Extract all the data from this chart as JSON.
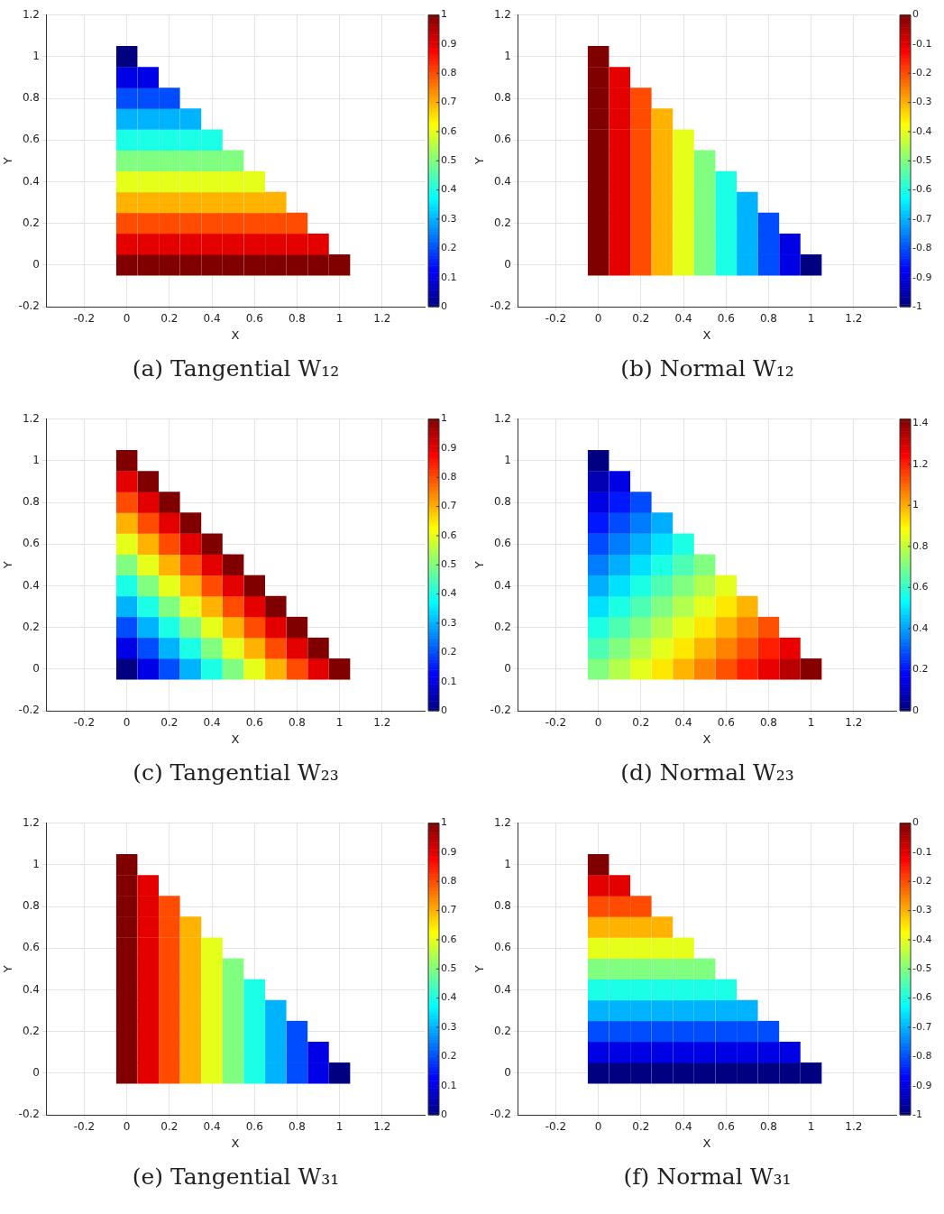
{
  "chart_data": [
    {
      "type": "scatter",
      "title": "(a) Tangential W₁₂",
      "xlabel": "X",
      "ylabel": "Y",
      "marker": "square",
      "grid": true,
      "xlim": [
        -0.38,
        1.4
      ],
      "ylim": [
        -0.2,
        1.2
      ],
      "xticks": [
        -0.2,
        0,
        0.2,
        0.4,
        0.6,
        0.8,
        1,
        1.2
      ],
      "yticks": [
        -0.2,
        0,
        0.2,
        0.4,
        0.6,
        0.8,
        1,
        1.2
      ],
      "clim": [
        0,
        1
      ],
      "cticks": [
        0,
        0.1,
        0.2,
        0.3,
        0.4,
        0.5,
        0.6,
        0.7,
        0.8,
        0.9,
        1
      ],
      "x": [
        0,
        0,
        0,
        0,
        0,
        0,
        0,
        0,
        0,
        0,
        0,
        0.1,
        0.1,
        0.1,
        0.1,
        0.1,
        0.1,
        0.1,
        0.1,
        0.1,
        0.1,
        0.2,
        0.2,
        0.2,
        0.2,
        0.2,
        0.2,
        0.2,
        0.2,
        0.2,
        0.3,
        0.3,
        0.3,
        0.3,
        0.3,
        0.3,
        0.3,
        0.3,
        0.4,
        0.4,
        0.4,
        0.4,
        0.4,
        0.4,
        0.4,
        0.5,
        0.5,
        0.5,
        0.5,
        0.5,
        0.5,
        0.6,
        0.6,
        0.6,
        0.6,
        0.6,
        0.7,
        0.7,
        0.7,
        0.7,
        0.8,
        0.8,
        0.8,
        0.9,
        0.9,
        1
      ],
      "values": [
        0,
        0.1,
        0.2,
        0.3,
        0.4,
        0.5,
        0.6,
        0.7,
        0.8,
        0.9,
        1,
        0,
        0.1,
        0.2,
        0.3,
        0.4,
        0.5,
        0.6,
        0.7,
        0.8,
        0.9,
        0,
        0.1,
        0.2,
        0.3,
        0.4,
        0.5,
        0.6,
        0.7,
        0.8,
        0,
        0.1,
        0.2,
        0.3,
        0.4,
        0.5,
        0.6,
        0.7,
        0,
        0.1,
        0.2,
        0.3,
        0.4,
        0.5,
        0.6,
        0,
        0.1,
        0.2,
        0.3,
        0.4,
        0.5,
        0,
        0.1,
        0.2,
        0.3,
        0.4,
        0,
        0.1,
        0.2,
        0.3,
        0,
        0.1,
        0.2,
        0,
        0.1,
        0
      ],
      "cvalues": [
        1,
        0.9,
        0.8,
        0.7,
        0.6,
        0.5,
        0.4,
        0.3,
        0.2,
        0.1,
        0,
        1,
        0.9,
        0.8,
        0.7,
        0.6,
        0.5,
        0.4,
        0.3,
        0.2,
        0.1,
        1,
        0.9,
        0.8,
        0.7,
        0.6,
        0.5,
        0.4,
        0.3,
        0.2,
        1,
        0.9,
        0.8,
        0.7,
        0.6,
        0.5,
        0.4,
        0.3,
        1,
        0.9,
        0.8,
        0.7,
        0.6,
        0.5,
        0.4,
        1,
        0.9,
        0.8,
        0.7,
        0.6,
        0.5,
        1,
        0.9,
        0.8,
        0.7,
        0.6,
        1,
        0.9,
        0.8,
        0.7,
        1,
        0.9,
        0.8,
        1,
        0.9,
        1
      ]
    },
    {
      "type": "scatter",
      "title": "(b) Normal W₁₂",
      "xlabel": "X",
      "ylabel": "Y",
      "marker": "square",
      "grid": true,
      "xlim": [
        -0.38,
        1.4
      ],
      "ylim": [
        -0.2,
        1.2
      ],
      "xticks": [
        -0.2,
        0,
        0.2,
        0.4,
        0.6,
        0.8,
        1,
        1.2
      ],
      "yticks": [
        -0.2,
        0,
        0.2,
        0.4,
        0.6,
        0.8,
        1,
        1.2
      ],
      "clim": [
        -1,
        0
      ],
      "cticks": [
        -1,
        -0.9,
        -0.8,
        -0.7,
        -0.6,
        -0.5,
        -0.4,
        -0.3,
        -0.2,
        -0.1,
        0
      ],
      "x": [
        0,
        0,
        0,
        0,
        0,
        0,
        0,
        0,
        0,
        0,
        0,
        0.1,
        0.1,
        0.1,
        0.1,
        0.1,
        0.1,
        0.1,
        0.1,
        0.1,
        0.1,
        0.2,
        0.2,
        0.2,
        0.2,
        0.2,
        0.2,
        0.2,
        0.2,
        0.2,
        0.3,
        0.3,
        0.3,
        0.3,
        0.3,
        0.3,
        0.3,
        0.3,
        0.4,
        0.4,
        0.4,
        0.4,
        0.4,
        0.4,
        0.4,
        0.5,
        0.5,
        0.5,
        0.5,
        0.5,
        0.5,
        0.6,
        0.6,
        0.6,
        0.6,
        0.6,
        0.7,
        0.7,
        0.7,
        0.7,
        0.8,
        0.8,
        0.8,
        0.9,
        0.9,
        1
      ],
      "values": [
        0,
        0.1,
        0.2,
        0.3,
        0.4,
        0.5,
        0.6,
        0.7,
        0.8,
        0.9,
        1,
        0,
        0.1,
        0.2,
        0.3,
        0.4,
        0.5,
        0.6,
        0.7,
        0.8,
        0.9,
        0,
        0.1,
        0.2,
        0.3,
        0.4,
        0.5,
        0.6,
        0.7,
        0.8,
        0,
        0.1,
        0.2,
        0.3,
        0.4,
        0.5,
        0.6,
        0.7,
        0,
        0.1,
        0.2,
        0.3,
        0.4,
        0.5,
        0.6,
        0,
        0.1,
        0.2,
        0.3,
        0.4,
        0.5,
        0,
        0.1,
        0.2,
        0.3,
        0.4,
        0,
        0.1,
        0.2,
        0.3,
        0,
        0.1,
        0.2,
        0,
        0.1,
        0
      ],
      "cvalues": [
        0,
        0,
        0,
        0,
        0,
        0,
        0,
        0,
        0,
        0,
        0,
        -0.1,
        -0.1,
        -0.1,
        -0.1,
        -0.1,
        -0.1,
        -0.1,
        -0.1,
        -0.1,
        -0.1,
        -0.2,
        -0.2,
        -0.2,
        -0.2,
        -0.2,
        -0.2,
        -0.2,
        -0.2,
        -0.2,
        -0.3,
        -0.3,
        -0.3,
        -0.3,
        -0.3,
        -0.3,
        -0.3,
        -0.3,
        -0.4,
        -0.4,
        -0.4,
        -0.4,
        -0.4,
        -0.4,
        -0.4,
        -0.5,
        -0.5,
        -0.5,
        -0.5,
        -0.5,
        -0.5,
        -0.6,
        -0.6,
        -0.6,
        -0.6,
        -0.6,
        -0.7,
        -0.7,
        -0.7,
        -0.7,
        -0.8,
        -0.8,
        -0.8,
        -0.9,
        -0.9,
        -1
      ]
    },
    {
      "type": "scatter",
      "title": "(c) Tangential W₂₃",
      "xlabel": "X",
      "ylabel": "Y",
      "marker": "square",
      "grid": true,
      "xlim": [
        -0.38,
        1.4
      ],
      "ylim": [
        -0.2,
        1.2
      ],
      "xticks": [
        -0.2,
        0,
        0.2,
        0.4,
        0.6,
        0.8,
        1,
        1.2
      ],
      "yticks": [
        -0.2,
        0,
        0.2,
        0.4,
        0.6,
        0.8,
        1,
        1.2
      ],
      "clim": [
        0,
        1
      ],
      "cticks": [
        0,
        0.1,
        0.2,
        0.3,
        0.4,
        0.5,
        0.6,
        0.7,
        0.8,
        0.9,
        1
      ],
      "x": [
        0,
        0,
        0,
        0,
        0,
        0,
        0,
        0,
        0,
        0,
        0,
        0.1,
        0.1,
        0.1,
        0.1,
        0.1,
        0.1,
        0.1,
        0.1,
        0.1,
        0.1,
        0.2,
        0.2,
        0.2,
        0.2,
        0.2,
        0.2,
        0.2,
        0.2,
        0.2,
        0.3,
        0.3,
        0.3,
        0.3,
        0.3,
        0.3,
        0.3,
        0.3,
        0.4,
        0.4,
        0.4,
        0.4,
        0.4,
        0.4,
        0.4,
        0.5,
        0.5,
        0.5,
        0.5,
        0.5,
        0.5,
        0.6,
        0.6,
        0.6,
        0.6,
        0.6,
        0.7,
        0.7,
        0.7,
        0.7,
        0.8,
        0.8,
        0.8,
        0.9,
        0.9,
        1
      ],
      "values": [
        0,
        0.1,
        0.2,
        0.3,
        0.4,
        0.5,
        0.6,
        0.7,
        0.8,
        0.9,
        1,
        0,
        0.1,
        0.2,
        0.3,
        0.4,
        0.5,
        0.6,
        0.7,
        0.8,
        0.9,
        0,
        0.1,
        0.2,
        0.3,
        0.4,
        0.5,
        0.6,
        0.7,
        0.8,
        0,
        0.1,
        0.2,
        0.3,
        0.4,
        0.5,
        0.6,
        0.7,
        0,
        0.1,
        0.2,
        0.3,
        0.4,
        0.5,
        0.6,
        0,
        0.1,
        0.2,
        0.3,
        0.4,
        0.5,
        0,
        0.1,
        0.2,
        0.3,
        0.4,
        0,
        0.1,
        0.2,
        0.3,
        0,
        0.1,
        0.2,
        0,
        0.1,
        0
      ],
      "cvalues": [
        0,
        0.1,
        0.2,
        0.3,
        0.4,
        0.5,
        0.6,
        0.7,
        0.8,
        0.9,
        1,
        0.1,
        0.2,
        0.3,
        0.4,
        0.5,
        0.6,
        0.7,
        0.8,
        0.9,
        1,
        0.2,
        0.3,
        0.4,
        0.5,
        0.6,
        0.7,
        0.8,
        0.9,
        1,
        0.3,
        0.4,
        0.5,
        0.6,
        0.7,
        0.8,
        0.9,
        1,
        0.4,
        0.5,
        0.6,
        0.7,
        0.8,
        0.9,
        1,
        0.5,
        0.6,
        0.7,
        0.8,
        0.9,
        1,
        0.6,
        0.7,
        0.8,
        0.9,
        1,
        0.7,
        0.8,
        0.9,
        1,
        0.8,
        0.9,
        1,
        0.9,
        1,
        1
      ]
    },
    {
      "type": "scatter",
      "title": "(d) Normal W₂₃",
      "xlabel": "X",
      "ylabel": "Y",
      "marker": "square",
      "grid": true,
      "xlim": [
        -0.38,
        1.4
      ],
      "ylim": [
        -0.2,
        1.2
      ],
      "xticks": [
        -0.2,
        0,
        0.2,
        0.4,
        0.6,
        0.8,
        1,
        1.2
      ],
      "yticks": [
        -0.2,
        0,
        0.2,
        0.4,
        0.6,
        0.8,
        1,
        1.2
      ],
      "clim": [
        0,
        1.42
      ],
      "cticks": [
        0,
        0.2,
        0.4,
        0.6,
        0.8,
        1,
        1.2,
        1.4
      ],
      "x": [
        0,
        0,
        0,
        0,
        0,
        0,
        0,
        0,
        0,
        0,
        0,
        0.1,
        0.1,
        0.1,
        0.1,
        0.1,
        0.1,
        0.1,
        0.1,
        0.1,
        0.1,
        0.2,
        0.2,
        0.2,
        0.2,
        0.2,
        0.2,
        0.2,
        0.2,
        0.2,
        0.3,
        0.3,
        0.3,
        0.3,
        0.3,
        0.3,
        0.3,
        0.3,
        0.4,
        0.4,
        0.4,
        0.4,
        0.4,
        0.4,
        0.4,
        0.5,
        0.5,
        0.5,
        0.5,
        0.5,
        0.5,
        0.6,
        0.6,
        0.6,
        0.6,
        0.6,
        0.7,
        0.7,
        0.7,
        0.7,
        0.8,
        0.8,
        0.8,
        0.9,
        0.9,
        1
      ],
      "values": [
        0,
        0.1,
        0.2,
        0.3,
        0.4,
        0.5,
        0.6,
        0.7,
        0.8,
        0.9,
        1,
        0,
        0.1,
        0.2,
        0.3,
        0.4,
        0.5,
        0.6,
        0.7,
        0.8,
        0.9,
        0,
        0.1,
        0.2,
        0.3,
        0.4,
        0.5,
        0.6,
        0.7,
        0.8,
        0,
        0.1,
        0.2,
        0.3,
        0.4,
        0.5,
        0.6,
        0.7,
        0,
        0.1,
        0.2,
        0.3,
        0.4,
        0.5,
        0.6,
        0,
        0.1,
        0.2,
        0.3,
        0.4,
        0.5,
        0,
        0.1,
        0.2,
        0.3,
        0.4,
        0,
        0.1,
        0.2,
        0.3,
        0,
        0.1,
        0.2,
        0,
        0.1,
        0
      ],
      "cvalues": [
        0.71,
        0.64,
        0.57,
        0.49,
        0.42,
        0.35,
        0.28,
        0.21,
        0.14,
        0.07,
        0,
        0.78,
        0.71,
        0.64,
        0.57,
        0.49,
        0.42,
        0.35,
        0.28,
        0.21,
        0.14,
        0.85,
        0.78,
        0.71,
        0.64,
        0.57,
        0.49,
        0.42,
        0.35,
        0.28,
        0.92,
        0.85,
        0.78,
        0.71,
        0.64,
        0.57,
        0.49,
        0.42,
        0.99,
        0.92,
        0.85,
        0.78,
        0.71,
        0.64,
        0.57,
        1.06,
        0.99,
        0.92,
        0.85,
        0.78,
        0.71,
        1.13,
        1.06,
        0.99,
        0.92,
        0.85,
        1.2,
        1.13,
        1.06,
        0.99,
        1.27,
        1.2,
        1.13,
        1.34,
        1.27,
        1.41
      ]
    },
    {
      "type": "scatter",
      "title": "(e) Tangential W₃₁",
      "xlabel": "X",
      "ylabel": "Y",
      "marker": "square",
      "grid": true,
      "xlim": [
        -0.38,
        1.4
      ],
      "ylim": [
        -0.2,
        1.2
      ],
      "xticks": [
        -0.2,
        0,
        0.2,
        0.4,
        0.6,
        0.8,
        1,
        1.2
      ],
      "yticks": [
        -0.2,
        0,
        0.2,
        0.4,
        0.6,
        0.8,
        1,
        1.2
      ],
      "clim": [
        0,
        1
      ],
      "cticks": [
        0,
        0.1,
        0.2,
        0.3,
        0.4,
        0.5,
        0.6,
        0.7,
        0.8,
        0.9,
        1
      ],
      "x": [
        0,
        0,
        0,
        0,
        0,
        0,
        0,
        0,
        0,
        0,
        0,
        0.1,
        0.1,
        0.1,
        0.1,
        0.1,
        0.1,
        0.1,
        0.1,
        0.1,
        0.1,
        0.2,
        0.2,
        0.2,
        0.2,
        0.2,
        0.2,
        0.2,
        0.2,
        0.2,
        0.3,
        0.3,
        0.3,
        0.3,
        0.3,
        0.3,
        0.3,
        0.3,
        0.4,
        0.4,
        0.4,
        0.4,
        0.4,
        0.4,
        0.4,
        0.5,
        0.5,
        0.5,
        0.5,
        0.5,
        0.5,
        0.6,
        0.6,
        0.6,
        0.6,
        0.6,
        0.7,
        0.7,
        0.7,
        0.7,
        0.8,
        0.8,
        0.8,
        0.9,
        0.9,
        1
      ],
      "values": [
        0,
        0.1,
        0.2,
        0.3,
        0.4,
        0.5,
        0.6,
        0.7,
        0.8,
        0.9,
        1,
        0,
        0.1,
        0.2,
        0.3,
        0.4,
        0.5,
        0.6,
        0.7,
        0.8,
        0.9,
        0,
        0.1,
        0.2,
        0.3,
        0.4,
        0.5,
        0.6,
        0.7,
        0.8,
        0,
        0.1,
        0.2,
        0.3,
        0.4,
        0.5,
        0.6,
        0.7,
        0,
        0.1,
        0.2,
        0.3,
        0.4,
        0.5,
        0.6,
        0,
        0.1,
        0.2,
        0.3,
        0.4,
        0.5,
        0,
        0.1,
        0.2,
        0.3,
        0.4,
        0,
        0.1,
        0.2,
        0.3,
        0,
        0.1,
        0.2,
        0,
        0.1,
        0
      ],
      "cvalues": [
        1,
        1,
        1,
        1,
        1,
        1,
        1,
        1,
        1,
        1,
        1,
        0.9,
        0.9,
        0.9,
        0.9,
        0.9,
        0.9,
        0.9,
        0.9,
        0.9,
        0.9,
        0.8,
        0.8,
        0.8,
        0.8,
        0.8,
        0.8,
        0.8,
        0.8,
        0.8,
        0.7,
        0.7,
        0.7,
        0.7,
        0.7,
        0.7,
        0.7,
        0.7,
        0.6,
        0.6,
        0.6,
        0.6,
        0.6,
        0.6,
        0.6,
        0.5,
        0.5,
        0.5,
        0.5,
        0.5,
        0.5,
        0.4,
        0.4,
        0.4,
        0.4,
        0.4,
        0.3,
        0.3,
        0.3,
        0.3,
        0.2,
        0.2,
        0.2,
        0.1,
        0.1,
        0
      ]
    },
    {
      "type": "scatter",
      "title": "(f) Normal W₃₁",
      "xlabel": "X",
      "ylabel": "Y",
      "marker": "square",
      "grid": true,
      "xlim": [
        -0.38,
        1.4
      ],
      "ylim": [
        -0.2,
        1.2
      ],
      "xticks": [
        -0.2,
        0,
        0.2,
        0.4,
        0.6,
        0.8,
        1,
        1.2
      ],
      "yticks": [
        -0.2,
        0,
        0.2,
        0.4,
        0.6,
        0.8,
        1,
        1.2
      ],
      "clim": [
        -1,
        0
      ],
      "cticks": [
        -1,
        -0.9,
        -0.8,
        -0.7,
        -0.6,
        -0.5,
        -0.4,
        -0.3,
        -0.2,
        -0.1,
        0
      ],
      "x": [
        0,
        0,
        0,
        0,
        0,
        0,
        0,
        0,
        0,
        0,
        0,
        0.1,
        0.1,
        0.1,
        0.1,
        0.1,
        0.1,
        0.1,
        0.1,
        0.1,
        0.1,
        0.2,
        0.2,
        0.2,
        0.2,
        0.2,
        0.2,
        0.2,
        0.2,
        0.2,
        0.3,
        0.3,
        0.3,
        0.3,
        0.3,
        0.3,
        0.3,
        0.3,
        0.4,
        0.4,
        0.4,
        0.4,
        0.4,
        0.4,
        0.4,
        0.5,
        0.5,
        0.5,
        0.5,
        0.5,
        0.5,
        0.6,
        0.6,
        0.6,
        0.6,
        0.6,
        0.7,
        0.7,
        0.7,
        0.7,
        0.8,
        0.8,
        0.8,
        0.9,
        0.9,
        1
      ],
      "values": [
        0,
        0.1,
        0.2,
        0.3,
        0.4,
        0.5,
        0.6,
        0.7,
        0.8,
        0.9,
        1,
        0,
        0.1,
        0.2,
        0.3,
        0.4,
        0.5,
        0.6,
        0.7,
        0.8,
        0.9,
        0,
        0.1,
        0.2,
        0.3,
        0.4,
        0.5,
        0.6,
        0.7,
        0.8,
        0,
        0.1,
        0.2,
        0.3,
        0.4,
        0.5,
        0.6,
        0.7,
        0,
        0.1,
        0.2,
        0.3,
        0.4,
        0.5,
        0.6,
        0,
        0.1,
        0.2,
        0.3,
        0.4,
        0.5,
        0,
        0.1,
        0.2,
        0.3,
        0.4,
        0,
        0.1,
        0.2,
        0.3,
        0,
        0.1,
        0.2,
        0,
        0.1,
        0
      ],
      "cvalues": [
        -1,
        -0.9,
        -0.8,
        -0.7,
        -0.6,
        -0.5,
        -0.4,
        -0.3,
        -0.2,
        -0.1,
        0,
        -1,
        -0.9,
        -0.8,
        -0.7,
        -0.6,
        -0.5,
        -0.4,
        -0.3,
        -0.2,
        -0.1,
        -1,
        -0.9,
        -0.8,
        -0.7,
        -0.6,
        -0.5,
        -0.4,
        -0.3,
        -0.2,
        -1,
        -0.9,
        -0.8,
        -0.7,
        -0.6,
        -0.5,
        -0.4,
        -0.3,
        -1,
        -0.9,
        -0.8,
        -0.7,
        -0.6,
        -0.5,
        -0.4,
        -1,
        -0.9,
        -0.8,
        -0.7,
        -0.6,
        -0.5,
        -1,
        -0.9,
        -0.8,
        -0.7,
        -0.6,
        -1,
        -0.9,
        -0.8,
        -0.7,
        -1,
        -0.9,
        -0.8,
        -1,
        -0.9,
        -1
      ]
    }
  ]
}
